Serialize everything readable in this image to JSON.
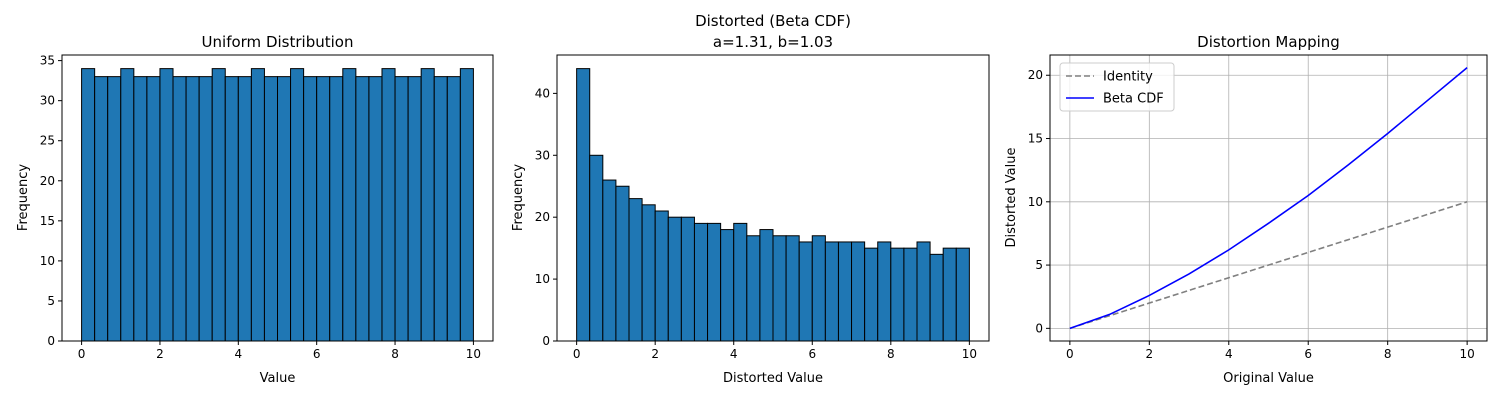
{
  "chart_data": [
    {
      "type": "bar",
      "title": "Uniform Distribution",
      "xlabel": "Value",
      "ylabel": "Frequency",
      "xlim": [
        -0.5,
        10.5
      ],
      "ylim": [
        0,
        35.7
      ],
      "xticks": [
        0,
        2,
        4,
        6,
        8,
        10
      ],
      "yticks": [
        0,
        5,
        10,
        15,
        20,
        25,
        30,
        35
      ],
      "bin_start": 0,
      "bin_end": 10,
      "values": [
        34,
        33,
        33,
        34,
        33,
        33,
        34,
        33,
        33,
        33,
        34,
        33,
        33,
        34,
        33,
        33,
        34,
        33,
        33,
        33,
        34,
        33,
        33,
        34,
        33,
        33,
        34,
        33,
        33,
        34
      ],
      "bar_color": "#1f77b4",
      "edge_color": "#000000",
      "grid": false
    },
    {
      "type": "bar",
      "title": "Distorted (Beta CDF)",
      "subtitle": "a=1.31, b=1.03",
      "xlabel": "Distorted Value",
      "ylabel": "Frequency",
      "xlim": [
        -0.5,
        10.5
      ],
      "ylim": [
        0,
        46.2
      ],
      "xticks": [
        0,
        2,
        4,
        6,
        8,
        10
      ],
      "yticks": [
        0,
        10,
        20,
        30,
        40
      ],
      "bin_start": 0,
      "bin_end": 10,
      "values": [
        44,
        30,
        26,
        25,
        23,
        22,
        21,
        20,
        20,
        19,
        19,
        18,
        19,
        17,
        18,
        17,
        17,
        16,
        17,
        16,
        16,
        16,
        15,
        16,
        15,
        15,
        16,
        14,
        15,
        15
      ],
      "bar_color": "#1f77b4",
      "edge_color": "#000000",
      "grid": false
    },
    {
      "type": "line",
      "title": "Distortion Mapping",
      "xlabel": "Original Value",
      "ylabel": "Distorted Value",
      "xlim": [
        -0.5,
        10.5
      ],
      "ylim": [
        -1.0,
        21.6
      ],
      "xticks": [
        0,
        2,
        4,
        6,
        8,
        10
      ],
      "yticks": [
        0,
        5,
        10,
        15,
        20
      ],
      "grid": true,
      "legend_position": "upper-left",
      "series": [
        {
          "name": "Identity",
          "color": "#808080",
          "style": "dashed",
          "x": [
            0,
            10
          ],
          "y": [
            0,
            10
          ]
        },
        {
          "name": "Beta CDF",
          "color": "#0000ff",
          "style": "solid",
          "x": [
            0,
            1,
            2,
            3,
            4,
            5,
            6,
            7,
            8,
            9,
            10
          ],
          "y": [
            0,
            1.1,
            2.6,
            4.3,
            6.2,
            8.3,
            10.5,
            12.9,
            15.4,
            18.0,
            20.6
          ]
        }
      ]
    }
  ]
}
